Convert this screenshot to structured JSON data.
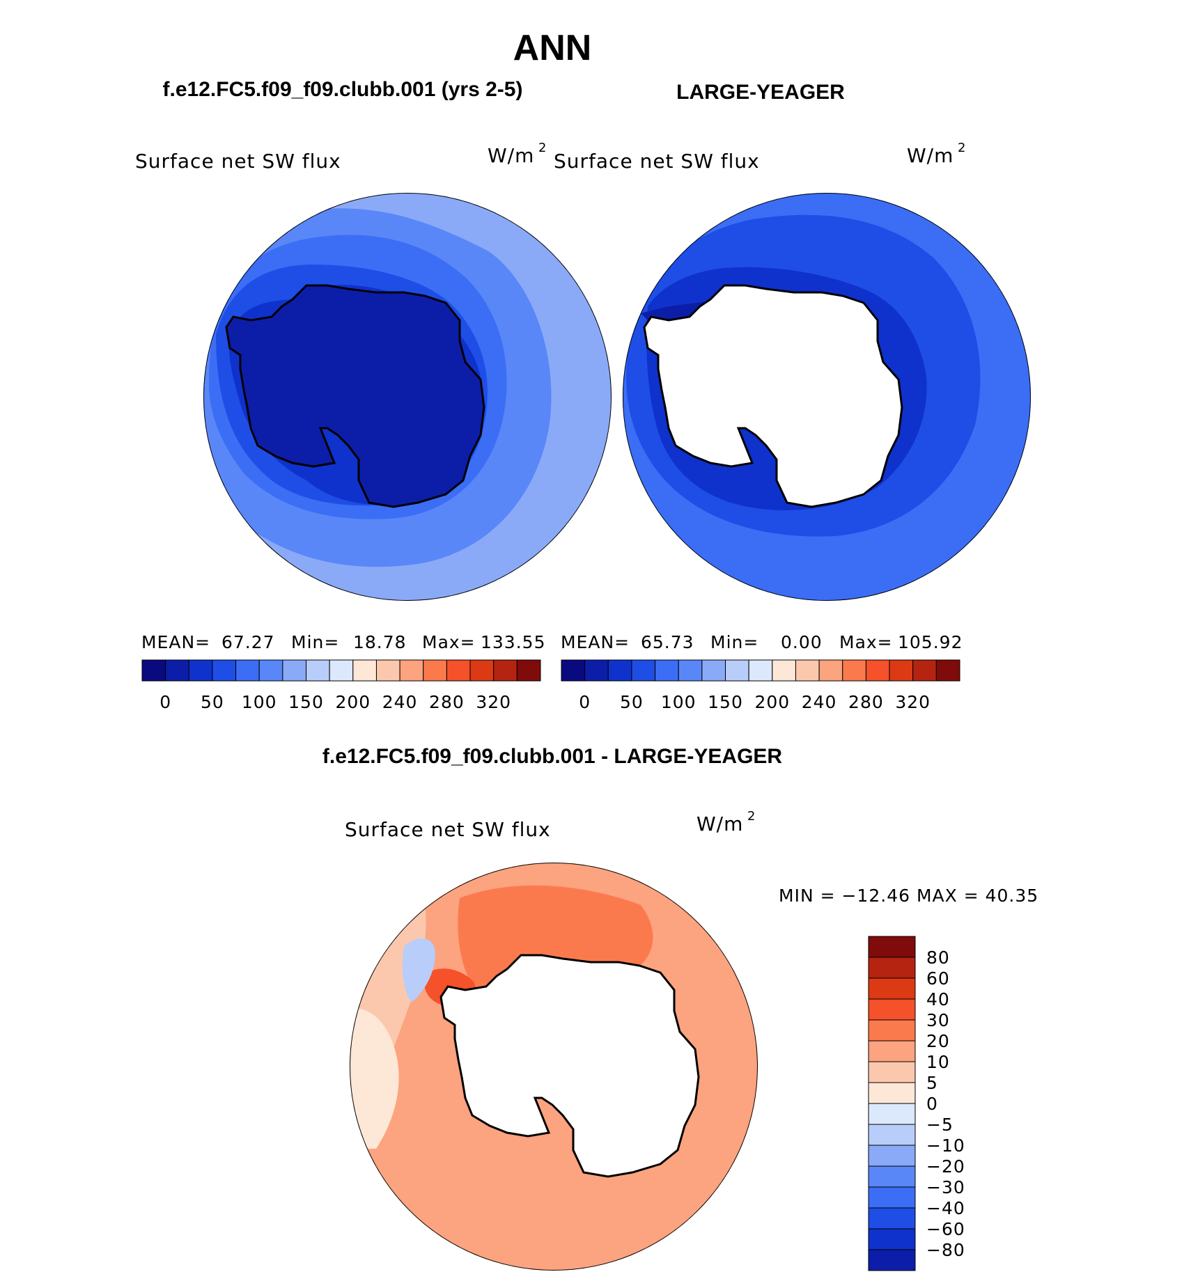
{
  "page_title": "ANN",
  "panels": [
    {
      "header": "f.e12.FC5.f09_f09.clubb.001 (yrs 2-5)",
      "variable": "Surface net SW flux",
      "units": "W/m",
      "units_exp": "2",
      "stats": {
        "mean_label": "MEAN=",
        "mean": "67.27",
        "min_label": "Min=",
        "min": "18.78",
        "max_label": "Max=",
        "max": "133.55"
      }
    },
    {
      "header": "LARGE-YEAGER",
      "variable": "Surface net SW flux",
      "units": "W/m",
      "units_exp": "2",
      "stats": {
        "mean_label": "MEAN=",
        "mean": "65.73",
        "min_label": "Min=",
        "min": "0.00",
        "max_label": "Max=",
        "max": "105.92"
      }
    }
  ],
  "diff_panel": {
    "header": "f.e12.FC5.f09_f09.clubb.001 - LARGE-YEAGER",
    "variable": "Surface net SW flux",
    "units": "W/m",
    "units_exp": "2",
    "minmax": "MIN = −12.46 MAX =   40.35"
  },
  "chart_data": [
    {
      "type": "heatmap",
      "projection": "south-polar stereographic",
      "title": "Surface net SW flux",
      "units": "W/m2",
      "mean": 67.27,
      "min": 18.78,
      "max": 133.55,
      "colorbar": {
        "orientation": "horizontal",
        "tick_labels": [
          "0",
          "50",
          "100",
          "150",
          "200",
          "240",
          "280",
          "320"
        ],
        "colors": [
          "#0a0a80",
          "#0c1ea8",
          "#0f32cc",
          "#1e4ee6",
          "#3b6ef5",
          "#5a87f7",
          "#8aaaf8",
          "#b8cdfa",
          "#dce9fc",
          "#fde7d6",
          "#fcc8ad",
          "#fca37f",
          "#fb7a4d",
          "#f5512a",
          "#dc3a14",
          "#b52410",
          "#800b0b"
        ]
      }
    },
    {
      "type": "heatmap",
      "projection": "south-polar stereographic",
      "title": "Surface net SW flux",
      "units": "W/m2",
      "mean": 65.73,
      "min": 0.0,
      "max": 105.92,
      "colorbar": {
        "orientation": "horizontal",
        "tick_labels": [
          "0",
          "50",
          "100",
          "150",
          "200",
          "240",
          "280",
          "320"
        ],
        "colors": [
          "#0a0a80",
          "#0c1ea8",
          "#0f32cc",
          "#1e4ee6",
          "#3b6ef5",
          "#5a87f7",
          "#8aaaf8",
          "#b8cdfa",
          "#dce9fc",
          "#fde7d6",
          "#fcc8ad",
          "#fca37f",
          "#fb7a4d",
          "#f5512a",
          "#dc3a14",
          "#b52410",
          "#800b0b"
        ]
      }
    },
    {
      "type": "heatmap",
      "projection": "south-polar stereographic",
      "title": "Surface net SW flux",
      "units": "W/m2",
      "min": -12.46,
      "max": 40.35,
      "colorbar": {
        "orientation": "vertical",
        "tick_labels": [
          "80",
          "60",
          "40",
          "30",
          "20",
          "10",
          "5",
          "0",
          "−5",
          "−10",
          "−20",
          "−30",
          "−40",
          "−60",
          "−80"
        ],
        "colors": [
          "#800b0b",
          "#b52410",
          "#dc3a14",
          "#f5512a",
          "#fb7a4d",
          "#fca37f",
          "#fcc8ad",
          "#fde7d6",
          "#dce9fc",
          "#b8cdfa",
          "#8aaaf8",
          "#5a87f7",
          "#3b6ef5",
          "#1e4ee6",
          "#0f32cc",
          "#0c1ea8"
        ]
      }
    }
  ]
}
